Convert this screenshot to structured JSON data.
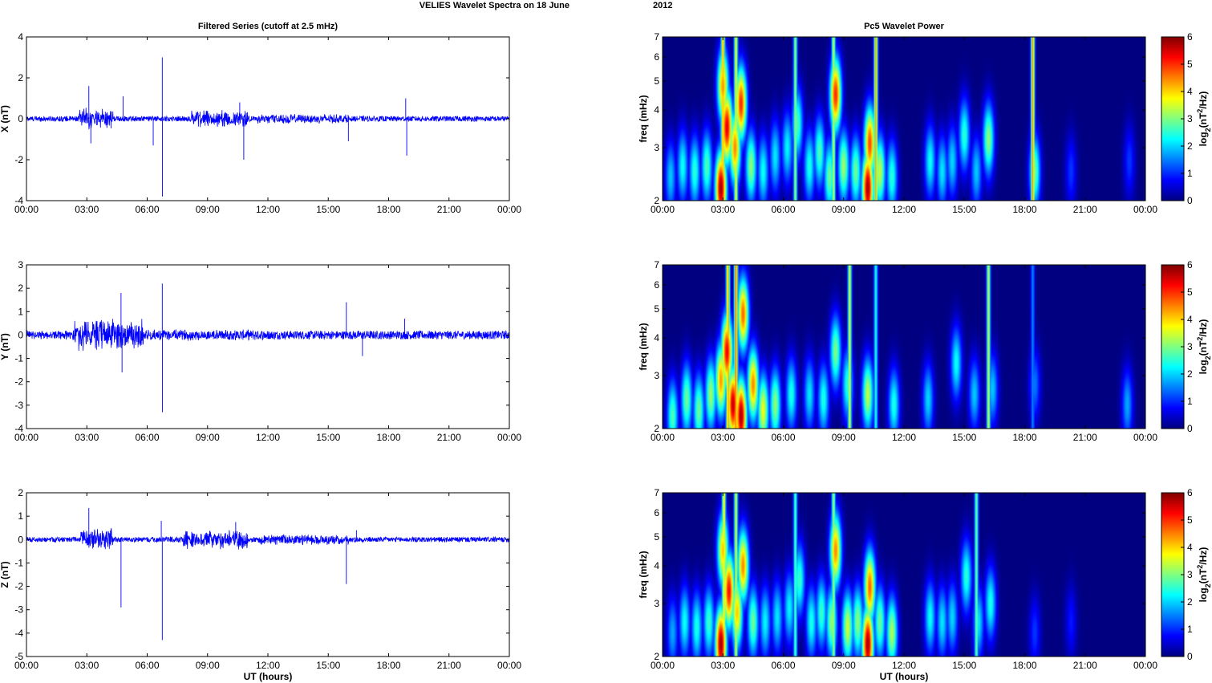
{
  "figure": {
    "title": "VELIES Wavelet Spectra on 18 June",
    "year": "2012",
    "left_title": "Filtered Series (cutoff at 2.5 mHz)",
    "right_title": "Pc5 Wavelet Power",
    "xlabel": "UT (hours)",
    "colorbar_label": "log2(nT2/Hz)",
    "colors": {
      "trace": "#0000ff",
      "axis": "#000000",
      "background": "#ffffff"
    }
  },
  "chart_data": [
    {
      "type": "line",
      "panel": "X",
      "ylabel": "X (nT)",
      "ylim": [
        -4,
        4
      ],
      "yticks": [
        -4,
        -2,
        0,
        2,
        4
      ],
      "xlim": [
        0,
        24
      ],
      "xticks": [
        "00:00",
        "03:00",
        "06:00",
        "09:00",
        "12:00",
        "15:00",
        "18:00",
        "21:00",
        "00:00"
      ],
      "noise_amplitude": 0.13,
      "active_bursts": [
        {
          "start": 2.6,
          "end": 4.3,
          "amplitude": 0.55
        },
        {
          "start": 8.2,
          "end": 11.0,
          "amplitude": 0.45
        },
        {
          "start": 11.5,
          "end": 16.0,
          "amplitude": 0.25
        }
      ],
      "spikes": [
        {
          "t": 3.1,
          "v": 1.6
        },
        {
          "t": 3.2,
          "v": -1.2
        },
        {
          "t": 4.8,
          "v": 1.1
        },
        {
          "t": 6.3,
          "v": -1.3
        },
        {
          "t": 6.75,
          "v": 3.0
        },
        {
          "t": 6.76,
          "v": -3.8
        },
        {
          "t": 10.6,
          "v": 0.8
        },
        {
          "t": 10.8,
          "v": -2.0
        },
        {
          "t": 16.0,
          "v": -1.1
        },
        {
          "t": 18.85,
          "v": 1.0
        },
        {
          "t": 18.9,
          "v": -1.8
        }
      ]
    },
    {
      "type": "line",
      "panel": "Y",
      "ylabel": "Y (nT)",
      "ylim": [
        -4,
        3
      ],
      "yticks": [
        -4,
        -3,
        -2,
        -1,
        0,
        1,
        2,
        3
      ],
      "xlim": [
        0,
        24
      ],
      "xticks": [
        "00:00",
        "03:00",
        "06:00",
        "09:00",
        "12:00",
        "15:00",
        "18:00",
        "21:00",
        "00:00"
      ],
      "noise_amplitude": 0.18,
      "active_bursts": [
        {
          "start": 2.3,
          "end": 5.8,
          "amplitude": 0.75
        },
        {
          "start": 6.0,
          "end": 12.0,
          "amplitude": 0.25
        }
      ],
      "spikes": [
        {
          "t": 4.7,
          "v": 1.8
        },
        {
          "t": 4.75,
          "v": -1.6
        },
        {
          "t": 6.75,
          "v": 2.2
        },
        {
          "t": 6.76,
          "v": -3.3
        },
        {
          "t": 15.9,
          "v": 1.4
        },
        {
          "t": 16.7,
          "v": -0.9
        },
        {
          "t": 18.8,
          "v": 0.7
        }
      ]
    },
    {
      "type": "line",
      "panel": "Z",
      "ylabel": "Z (nT)",
      "ylim": [
        -5,
        2
      ],
      "yticks": [
        -5,
        -4,
        -3,
        -2,
        -1,
        0,
        1,
        2
      ],
      "xlim": [
        0,
        24
      ],
      "xticks": [
        "00:00",
        "03:00",
        "06:00",
        "09:00",
        "12:00",
        "15:00",
        "18:00",
        "21:00",
        "00:00"
      ],
      "noise_amplitude": 0.11,
      "active_bursts": [
        {
          "start": 2.7,
          "end": 4.3,
          "amplitude": 0.55
        },
        {
          "start": 7.8,
          "end": 11.0,
          "amplitude": 0.45
        },
        {
          "start": 11.5,
          "end": 16.0,
          "amplitude": 0.25
        }
      ],
      "spikes": [
        {
          "t": 3.1,
          "v": 1.35
        },
        {
          "t": 4.7,
          "v": -2.9
        },
        {
          "t": 6.7,
          "v": 0.8
        },
        {
          "t": 6.75,
          "v": -4.3
        },
        {
          "t": 10.4,
          "v": 0.75
        },
        {
          "t": 15.9,
          "v": -1.9
        },
        {
          "t": 16.4,
          "v": 0.4
        }
      ]
    },
    {
      "type": "heatmap",
      "panel": "X",
      "ylabel": "freq (mHz)",
      "yscale": "log",
      "ylim": [
        2,
        7
      ],
      "yticks": [
        2,
        3,
        4,
        5,
        6,
        7
      ],
      "xlim": [
        0,
        24
      ],
      "xticks": [
        "00:00",
        "03:00",
        "06:00",
        "09:00",
        "12:00",
        "15:00",
        "18:00",
        "21:00",
        "00:00"
      ],
      "clim": [
        0,
        6
      ],
      "cticks": [
        0,
        1,
        2,
        3,
        4,
        5,
        6
      ],
      "colormap": "jet",
      "blobs": [
        {
          "t": 0.4,
          "f": 2.4,
          "v": 2.0
        },
        {
          "t": 1.0,
          "f": 2.6,
          "v": 2.4
        },
        {
          "t": 1.6,
          "f": 2.5,
          "v": 2.6
        },
        {
          "t": 2.2,
          "f": 2.6,
          "v": 2.8
        },
        {
          "t": 2.9,
          "f": 2.2,
          "v": 6.0
        },
        {
          "t": 3.0,
          "f": 4.8,
          "v": 4.5
        },
        {
          "t": 3.2,
          "f": 3.5,
          "v": 5.6
        },
        {
          "t": 3.6,
          "f": 3.0,
          "v": 4.6
        },
        {
          "t": 3.9,
          "f": 4.2,
          "v": 5.2
        },
        {
          "t": 4.4,
          "f": 2.6,
          "v": 3.2
        },
        {
          "t": 5.0,
          "f": 2.5,
          "v": 2.4
        },
        {
          "t": 5.6,
          "f": 2.8,
          "v": 2.2
        },
        {
          "t": 6.2,
          "f": 3.0,
          "v": 2.3
        },
        {
          "t": 6.7,
          "f": 3.6,
          "v": 2.8
        },
        {
          "t": 7.3,
          "f": 2.6,
          "v": 2.5
        },
        {
          "t": 7.8,
          "f": 2.9,
          "v": 2.8
        },
        {
          "t": 8.3,
          "f": 2.4,
          "v": 3.0
        },
        {
          "t": 8.6,
          "f": 4.5,
          "v": 5.2
        },
        {
          "t": 9.0,
          "f": 2.6,
          "v": 3.3
        },
        {
          "t": 9.6,
          "f": 2.5,
          "v": 3.0
        },
        {
          "t": 10.2,
          "f": 2.2,
          "v": 6.0
        },
        {
          "t": 10.3,
          "f": 3.1,
          "v": 5.0
        },
        {
          "t": 10.8,
          "f": 2.5,
          "v": 3.5
        },
        {
          "t": 11.4,
          "f": 2.4,
          "v": 2.6
        },
        {
          "t": 13.3,
          "f": 2.7,
          "v": 2.4
        },
        {
          "t": 13.9,
          "f": 2.5,
          "v": 2.2
        },
        {
          "t": 14.4,
          "f": 2.7,
          "v": 2.1
        },
        {
          "t": 15.0,
          "f": 3.3,
          "v": 2.6
        },
        {
          "t": 15.6,
          "f": 2.5,
          "v": 2.0
        },
        {
          "t": 16.2,
          "f": 3.2,
          "v": 3.2
        },
        {
          "t": 18.5,
          "f": 2.5,
          "v": 3.0
        },
        {
          "t": 20.3,
          "f": 2.5,
          "v": 1.1
        },
        {
          "t": 23.2,
          "f": 2.7,
          "v": 1.1
        }
      ],
      "streaks": [
        {
          "t": 3.0,
          "v": 4.5
        },
        {
          "t": 3.65,
          "v": 3.8
        },
        {
          "t": 6.6,
          "v": 3.2
        },
        {
          "t": 8.5,
          "v": 3.5
        },
        {
          "t": 10.6,
          "v": 4.4
        },
        {
          "t": 18.4,
          "v": 4.5
        }
      ]
    },
    {
      "type": "heatmap",
      "panel": "Y",
      "ylabel": "freq (mHz)",
      "yscale": "log",
      "ylim": [
        2,
        7
      ],
      "yticks": [
        2,
        3,
        4,
        5,
        6,
        7
      ],
      "xlim": [
        0,
        24
      ],
      "xticks": [
        "00:00",
        "03:00",
        "06:00",
        "09:00",
        "12:00",
        "15:00",
        "18:00",
        "21:00",
        "00:00"
      ],
      "clim": [
        0,
        6
      ],
      "cticks": [
        0,
        1,
        2,
        3,
        4,
        5,
        6
      ],
      "colormap": "jet",
      "blobs": [
        {
          "t": 0.5,
          "f": 2.2,
          "v": 2.8
        },
        {
          "t": 1.2,
          "f": 2.5,
          "v": 3.0
        },
        {
          "t": 1.8,
          "f": 2.3,
          "v": 3.0
        },
        {
          "t": 2.4,
          "f": 2.6,
          "v": 3.3
        },
        {
          "t": 2.9,
          "f": 2.9,
          "v": 4.5
        },
        {
          "t": 3.2,
          "f": 3.6,
          "v": 5.5
        },
        {
          "t": 3.5,
          "f": 2.4,
          "v": 5.8
        },
        {
          "t": 3.9,
          "f": 2.2,
          "v": 6.0
        },
        {
          "t": 4.0,
          "f": 4.8,
          "v": 4.8
        },
        {
          "t": 4.5,
          "f": 2.8,
          "v": 4.6
        },
        {
          "t": 5.0,
          "f": 2.3,
          "v": 3.8
        },
        {
          "t": 5.6,
          "f": 2.4,
          "v": 3.2
        },
        {
          "t": 6.4,
          "f": 2.6,
          "v": 2.5
        },
        {
          "t": 7.3,
          "f": 2.6,
          "v": 2.2
        },
        {
          "t": 8.0,
          "f": 2.5,
          "v": 2.5
        },
        {
          "t": 8.6,
          "f": 3.6,
          "v": 3.1
        },
        {
          "t": 9.2,
          "f": 2.8,
          "v": 2.6
        },
        {
          "t": 10.2,
          "f": 2.6,
          "v": 3.5
        },
        {
          "t": 11.5,
          "f": 2.4,
          "v": 2.5
        },
        {
          "t": 13.2,
          "f": 2.5,
          "v": 2.1
        },
        {
          "t": 14.6,
          "f": 3.3,
          "v": 2.4
        },
        {
          "t": 15.5,
          "f": 2.6,
          "v": 2.0
        },
        {
          "t": 16.4,
          "f": 2.7,
          "v": 2.0
        },
        {
          "t": 18.5,
          "f": 2.8,
          "v": 1.5
        },
        {
          "t": 23.1,
          "f": 2.4,
          "v": 1.8
        }
      ],
      "streaks": [
        {
          "t": 3.25,
          "v": 4.5
        },
        {
          "t": 3.65,
          "v": 4.8
        },
        {
          "t": 9.3,
          "v": 3.6
        },
        {
          "t": 10.6,
          "v": 2.5
        },
        {
          "t": 16.2,
          "v": 3.5
        },
        {
          "t": 18.4,
          "v": 1.6
        }
      ]
    },
    {
      "type": "heatmap",
      "panel": "Z",
      "ylabel": "freq (mHz)",
      "yscale": "log",
      "ylim": [
        2,
        7
      ],
      "yticks": [
        2,
        3,
        4,
        5,
        6,
        7
      ],
      "xlim": [
        0,
        24
      ],
      "xticks": [
        "00:00",
        "03:00",
        "06:00",
        "09:00",
        "12:00",
        "15:00",
        "18:00",
        "21:00",
        "00:00"
      ],
      "clim": [
        0,
        6
      ],
      "cticks": [
        0,
        1,
        2,
        3,
        4,
        5,
        6
      ],
      "colormap": "jet",
      "blobs": [
        {
          "t": 0.5,
          "f": 2.4,
          "v": 1.8
        },
        {
          "t": 1.1,
          "f": 2.6,
          "v": 2.4
        },
        {
          "t": 1.7,
          "f": 2.5,
          "v": 2.5
        },
        {
          "t": 2.3,
          "f": 2.6,
          "v": 2.7
        },
        {
          "t": 2.9,
          "f": 2.2,
          "v": 6.0
        },
        {
          "t": 3.0,
          "f": 4.5,
          "v": 4.2
        },
        {
          "t": 3.3,
          "f": 3.3,
          "v": 5.4
        },
        {
          "t": 3.7,
          "f": 2.8,
          "v": 4.2
        },
        {
          "t": 4.0,
          "f": 4.0,
          "v": 4.6
        },
        {
          "t": 4.5,
          "f": 2.6,
          "v": 3.0
        },
        {
          "t": 5.1,
          "f": 2.6,
          "v": 2.3
        },
        {
          "t": 5.7,
          "f": 2.7,
          "v": 2.2
        },
        {
          "t": 6.3,
          "f": 2.9,
          "v": 2.3
        },
        {
          "t": 6.8,
          "f": 3.6,
          "v": 2.7
        },
        {
          "t": 7.4,
          "f": 2.6,
          "v": 2.5
        },
        {
          "t": 7.9,
          "f": 2.8,
          "v": 2.7
        },
        {
          "t": 8.4,
          "f": 2.6,
          "v": 3.2
        },
        {
          "t": 8.6,
          "f": 4.5,
          "v": 4.6
        },
        {
          "t": 9.2,
          "f": 2.5,
          "v": 3.6
        },
        {
          "t": 9.7,
          "f": 2.6,
          "v": 3.2
        },
        {
          "t": 10.2,
          "f": 2.2,
          "v": 6.0
        },
        {
          "t": 10.3,
          "f": 3.4,
          "v": 4.8
        },
        {
          "t": 10.8,
          "f": 2.6,
          "v": 3.0
        },
        {
          "t": 11.4,
          "f": 2.4,
          "v": 3.4
        },
        {
          "t": 13.3,
          "f": 2.7,
          "v": 2.4
        },
        {
          "t": 13.9,
          "f": 2.6,
          "v": 2.2
        },
        {
          "t": 14.4,
          "f": 2.7,
          "v": 2.1
        },
        {
          "t": 15.1,
          "f": 3.7,
          "v": 2.6
        },
        {
          "t": 15.7,
          "f": 2.6,
          "v": 2.2
        },
        {
          "t": 16.3,
          "f": 3.0,
          "v": 2.5
        },
        {
          "t": 18.5,
          "f": 2.4,
          "v": 1.1
        },
        {
          "t": 20.3,
          "f": 2.6,
          "v": 0.9
        }
      ],
      "streaks": [
        {
          "t": 3.05,
          "v": 4.0
        },
        {
          "t": 3.65,
          "v": 3.6
        },
        {
          "t": 6.6,
          "v": 2.8
        },
        {
          "t": 8.5,
          "v": 3.3
        },
        {
          "t": 15.6,
          "v": 3.0
        }
      ]
    }
  ]
}
